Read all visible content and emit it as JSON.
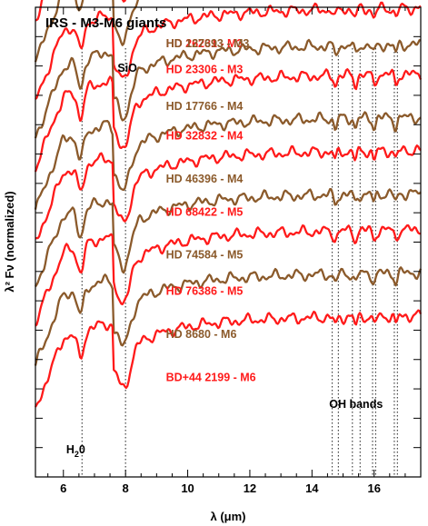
{
  "chart_data": {
    "type": "line",
    "title": "IRS - M3-M6 giants",
    "xlabel": "λ (μm)",
    "ylabel": "λ² Fν (normalized)",
    "xlim": [
      5.1,
      17.5
    ],
    "xticks": [
      6,
      8,
      10,
      12,
      14,
      16
    ],
    "x_minor_step": 0.5,
    "y_ticks_count": 16,
    "grid": false,
    "colors": {
      "red": "#ff1a1a",
      "brown": "#8b5a2b"
    },
    "feature_lines": [
      6.6,
      8.0,
      14.65,
      14.85,
      15.3,
      15.55,
      15.95,
      16.05,
      16.65,
      16.75
    ],
    "annotations": {
      "sio": {
        "text": "SiO",
        "x": 8.0
      },
      "h2o": {
        "text": "H",
        "sub": "2",
        "tail": "0",
        "x": 6.5
      },
      "oh": {
        "text": "OH bands",
        "x": 15.3
      }
    },
    "series": [
      {
        "name": "HD 26231 - M3",
        "color": "red",
        "offset": 14.2
      },
      {
        "name": "HD 127693 - M3",
        "color": "brown",
        "offset": 12.9
      },
      {
        "name": "HD 23306 - M3",
        "color": "red",
        "offset": 11.7
      },
      {
        "name": "HD 17766 - M4",
        "color": "brown",
        "offset": 10.6
      },
      {
        "name": "HD 32832 - M4",
        "color": "red",
        "offset": 9.7
      },
      {
        "name": "HD 46396 - M4",
        "color": "brown",
        "offset": 8.4
      },
      {
        "name": "HD 68422 - M5",
        "color": "red",
        "offset": 7.4
      },
      {
        "name": "HD 74584 - M5",
        "color": "brown",
        "offset": 6.1
      },
      {
        "name": "HD 76386 - M5",
        "color": "red",
        "offset": 5.0
      },
      {
        "name": "HD 8680 - M6",
        "color": "brown",
        "offset": 3.7
      },
      {
        "name": "BD+44 2199 - M6",
        "color": "red",
        "offset": 2.4
      }
    ]
  }
}
